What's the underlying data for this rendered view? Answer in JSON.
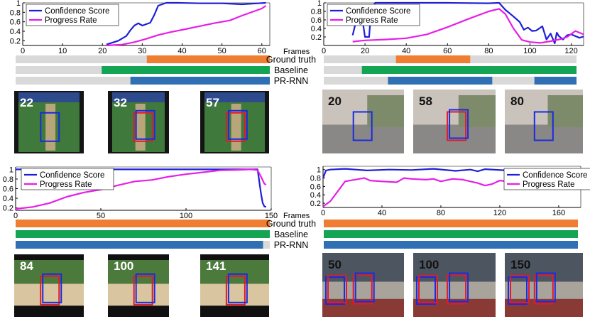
{
  "bars_label": "Frames",
  "row_labels": [
    "Ground truth",
    "Baseline",
    "PR-RNN"
  ],
  "colors": {
    "confidence": "#1f1fd6",
    "progress": "#e61ee6",
    "ground_truth": "#ef7d32",
    "baseline": "#13a454",
    "pr_rnn": "#2f6fb3",
    "bar_background": "#d9d9d9",
    "box_blue": "#1a2be0",
    "box_red": "#e01a2a"
  },
  "panels": [
    {
      "id": "cricket",
      "chart_data": {
        "type": "line",
        "xlim": [
          0,
          62
        ],
        "ylim": [
          0.1,
          1.0
        ],
        "xticks": [
          0,
          10,
          20,
          30,
          40,
          50,
          60
        ],
        "yticks": [
          "0.2",
          "0.4",
          "0.6",
          "0.8",
          "1"
        ],
        "legend_position": "top-left",
        "series": [
          {
            "name": "Confidence Score",
            "color_key": "confidence",
            "x": [
              21,
              24,
              26,
              27,
              28,
              29,
              30,
              31,
              32,
              33,
              34,
              36,
              39,
              45,
              50,
              55,
              59,
              61
            ],
            "y": [
              0.12,
              0.2,
              0.3,
              0.42,
              0.52,
              0.57,
              0.52,
              0.55,
              0.58,
              0.74,
              0.94,
              1.0,
              1.0,
              0.99,
              0.99,
              0.97,
              0.99,
              1.0
            ]
          },
          {
            "name": "Progress Rate",
            "color_key": "progress",
            "x": [
              21,
              25,
              28,
              31,
              34,
              37,
              40,
              44,
              48,
              52,
              55,
              57,
              60,
              61
            ],
            "y": [
              0.1,
              0.12,
              0.17,
              0.24,
              0.32,
              0.38,
              0.43,
              0.5,
              0.57,
              0.63,
              0.73,
              0.79,
              0.88,
              0.94
            ]
          }
        ]
      },
      "bars": {
        "total": 62,
        "ground_truth": [
          32,
          62
        ],
        "baseline": [
          21,
          62
        ],
        "pr_rnn": [
          28,
          62
        ]
      },
      "frames": [
        {
          "label": "22",
          "boxes": [
            "blue"
          ],
          "scene": "cricket"
        },
        {
          "label": "32",
          "boxes": [
            "red",
            "blue"
          ],
          "scene": "cricket"
        },
        {
          "label": "57",
          "boxes": [
            "red",
            "blue"
          ],
          "scene": "cricket"
        }
      ]
    },
    {
      "id": "basketball",
      "chart_data": {
        "type": "line",
        "xlim": [
          0,
          126
        ],
        "ylim": [
          0.0,
          1.0
        ],
        "xticks": [
          0,
          20,
          40,
          60,
          80,
          100,
          120
        ],
        "yticks": [
          "0.2",
          "0.4",
          "0.6",
          "0.8",
          "1"
        ],
        "legend_position": "top-left",
        "series": [
          {
            "name": "Confidence Score",
            "color_key": "confidence",
            "x": [
              14,
              17,
              18,
              20,
              22,
              23,
              25,
              30,
              40,
              60,
              80,
              85,
              88,
              92,
              95,
              97,
              99,
              101,
              103,
              106,
              108,
              110,
              112,
              113,
              114,
              116,
              118,
              120,
              122,
              124,
              126
            ],
            "y": [
              0.24,
              0.83,
              0.85,
              0.2,
              0.2,
              0.87,
              1.0,
              1.0,
              1.0,
              1.0,
              0.99,
              1.0,
              0.84,
              0.68,
              0.55,
              0.37,
              0.42,
              0.34,
              0.35,
              0.45,
              0.14,
              0.28,
              0.05,
              0.3,
              0.22,
              0.14,
              0.24,
              0.26,
              0.22,
              0.18,
              0.21
            ]
          },
          {
            "name": "Progress Rate",
            "color_key": "progress",
            "x": [
              14,
              20,
              30,
              40,
              50,
              60,
              70,
              80,
              85,
              88,
              92,
              96,
              100,
              105,
              110,
              115,
              118,
              120,
              122,
              124,
              126
            ],
            "y": [
              0.09,
              0.12,
              0.14,
              0.17,
              0.26,
              0.43,
              0.62,
              0.8,
              0.86,
              0.74,
              0.4,
              0.13,
              0.08,
              0.06,
              0.1,
              0.15,
              0.2,
              0.27,
              0.34,
              0.3,
              0.26
            ]
          }
        ]
      },
      "bars": {
        "total": 126,
        "ground_truth": [
          36,
          73
        ],
        "baseline": [
          19,
          126
        ],
        "pr_rnn": [
          32,
          84,
          105,
          126
        ]
      },
      "frames": [
        {
          "label": "20",
          "boxes": [
            "blue"
          ],
          "scene": "street"
        },
        {
          "label": "58",
          "boxes": [
            "red",
            "blue"
          ],
          "scene": "street"
        },
        {
          "label": "80",
          "boxes": [
            "blue"
          ],
          "scene": "street"
        }
      ]
    },
    {
      "id": "longjump",
      "chart_data": {
        "type": "line",
        "xlim": [
          0,
          150
        ],
        "ylim": [
          0.15,
          1.05
        ],
        "xticks": [
          0,
          50,
          100,
          150
        ],
        "yticks": [
          "0.2",
          "0.4",
          "0.6",
          "0.8",
          "1"
        ],
        "legend_position": "top-left",
        "series": [
          {
            "name": "Confidence Score",
            "color_key": "confidence",
            "x": [
              0,
              20,
              40,
              60,
              80,
              100,
              120,
              138,
              142,
              144,
              145,
              146,
              147
            ],
            "y": [
              1.0,
              1.0,
              1.0,
              1.0,
              1.0,
              1.0,
              1.0,
              1.0,
              1.0,
              0.5,
              0.3,
              0.23,
              0.22
            ]
          },
          {
            "name": "Progress Rate",
            "color_key": "progress",
            "x": [
              0,
              10,
              20,
              30,
              40,
              50,
              60,
              70,
              80,
              90,
              100,
              110,
              120,
              130,
              138,
              141,
              142,
              144,
              146,
              147
            ],
            "y": [
              0.18,
              0.22,
              0.3,
              0.43,
              0.52,
              0.58,
              0.67,
              0.75,
              0.78,
              0.85,
              0.9,
              0.94,
              0.98,
              0.99,
              1.0,
              0.99,
              0.98,
              0.85,
              0.7,
              0.68
            ]
          }
        ]
      },
      "bars": {
        "total": 150,
        "ground_truth": [
          0,
          150
        ],
        "baseline": [
          0,
          150
        ],
        "pr_rnn": [
          0,
          146
        ]
      },
      "frames": [
        {
          "label": "84",
          "boxes": [
            "red",
            "blue"
          ],
          "scene": "track"
        },
        {
          "label": "100",
          "boxes": [
            "red",
            "blue"
          ],
          "scene": "track"
        },
        {
          "label": "141",
          "boxes": [
            "red",
            "blue"
          ],
          "scene": "track"
        }
      ]
    },
    {
      "id": "fencing",
      "chart_data": {
        "type": "line",
        "xlim": [
          0,
          175
        ],
        "ylim": [
          0.1,
          1.08
        ],
        "xticks": [
          0,
          40,
          80,
          120,
          160
        ],
        "yticks": [
          "0.2",
          "0.4",
          "0.6",
          "0.8",
          "1"
        ],
        "legend_position": "top-right",
        "series": [
          {
            "name": "Confidence Score",
            "color_key": "confidence",
            "x": [
              0,
              2,
              5,
              15,
              30,
              45,
              60,
              75,
              90,
              100,
              105,
              110,
              125,
              140,
              160,
              170
            ],
            "y": [
              0.8,
              0.98,
              1.0,
              1.02,
              0.98,
              1.0,
              0.99,
              1.02,
              0.97,
              1.0,
              0.96,
              1.01,
              0.98,
              1.0,
              0.98,
              1.0
            ]
          },
          {
            "name": "Progress Rate",
            "color_key": "progress",
            "x": [
              0,
              5,
              15,
              28,
              32,
              40,
              50,
              55,
              60,
              70,
              75,
              80,
              88,
              95,
              100,
              105,
              110,
              115,
              120,
              125,
              135,
              145,
              152,
              160,
              170
            ],
            "y": [
              0.12,
              0.25,
              0.72,
              0.8,
              0.74,
              0.72,
              0.7,
              0.8,
              0.78,
              0.76,
              0.78,
              0.72,
              0.78,
              0.76,
              0.72,
              0.68,
              0.62,
              0.66,
              0.74,
              0.72,
              0.72,
              0.72,
              0.64,
              0.72,
              0.74
            ]
          }
        ]
      },
      "bars": {
        "total": 175,
        "ground_truth": [
          0,
          175
        ],
        "baseline": [
          0,
          175
        ],
        "pr_rnn": [
          0,
          175
        ]
      },
      "frames": [
        {
          "label": "50",
          "boxes": [
            "red",
            "blue"
          ],
          "scene": "fencing"
        },
        {
          "label": "100",
          "boxes": [
            "red",
            "blue"
          ],
          "scene": "fencing"
        },
        {
          "label": "150",
          "boxes": [
            "red",
            "blue"
          ],
          "scene": "fencing"
        }
      ]
    }
  ]
}
